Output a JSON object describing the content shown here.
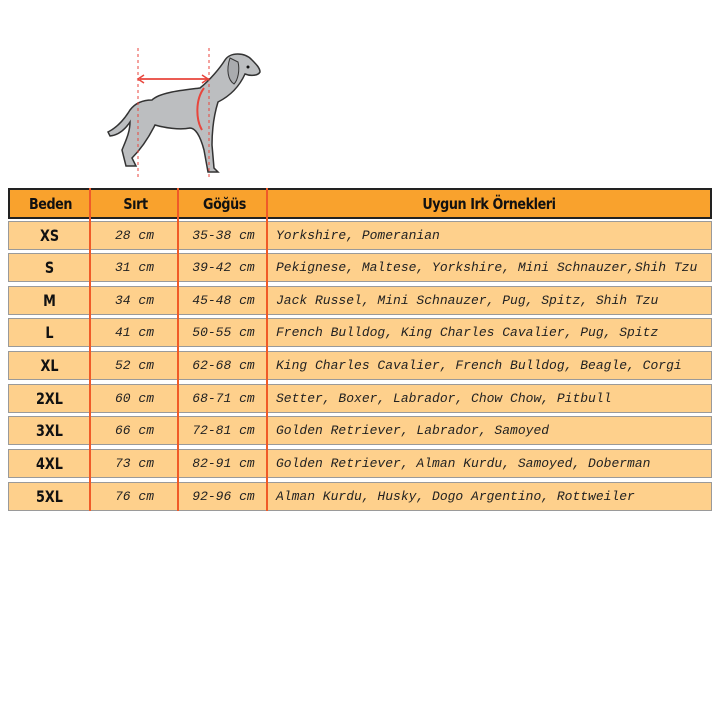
{
  "colors": {
    "header": "#f9a22d",
    "row": "#fed08c",
    "divider": "#f05a28",
    "measure": "#e8453c"
  },
  "illustration": {
    "icon": "dog-measurement-illustration"
  },
  "table": {
    "headers": [
      "Beden",
      "Sırt",
      "Göğüs",
      "Uygun Irk Örnekleri"
    ],
    "rows": [
      {
        "size": "XS",
        "back": "28 cm",
        "chest": "35-38 cm",
        "breeds": "Yorkshire, Pomeranian"
      },
      {
        "size": "S",
        "back": "31 cm",
        "chest": "39-42 cm",
        "breeds": "Pekignese, Maltese, Yorkshire, Mini Schnauzer,Shih Tzu"
      },
      {
        "size": "M",
        "back": "34 cm",
        "chest": "45-48 cm",
        "breeds": "Jack Russel, Mini Schnauzer, Pug, Spitz, Shih Tzu"
      },
      {
        "size": "L",
        "back": "41 cm",
        "chest": "50-55 cm",
        "breeds": "French Bulldog, King Charles Cavalier, Pug, Spitz"
      },
      {
        "size": "XL",
        "back": "52 cm",
        "chest": "62-68 cm",
        "breeds": "King Charles Cavalier, French Bulldog, Beagle, Corgi"
      },
      {
        "size": "2XL",
        "back": "60 cm",
        "chest": "68-71 cm",
        "breeds": "Setter, Boxer, Labrador, Chow Chow, Pitbull"
      },
      {
        "size": "3XL",
        "back": "66 cm",
        "chest": "72-81 cm",
        "breeds": "Golden Retriever, Labrador, Samoyed"
      },
      {
        "size": "4XL",
        "back": "73 cm",
        "chest": "82-91 cm",
        "breeds": "Golden Retriever, Alman Kurdu, Samoyed, Doberman"
      },
      {
        "size": "5XL",
        "back": "76 cm",
        "chest": "92-96 cm",
        "breeds": "Alman Kurdu, Husky, Dogo Argentino, Rottweiler"
      }
    ]
  }
}
